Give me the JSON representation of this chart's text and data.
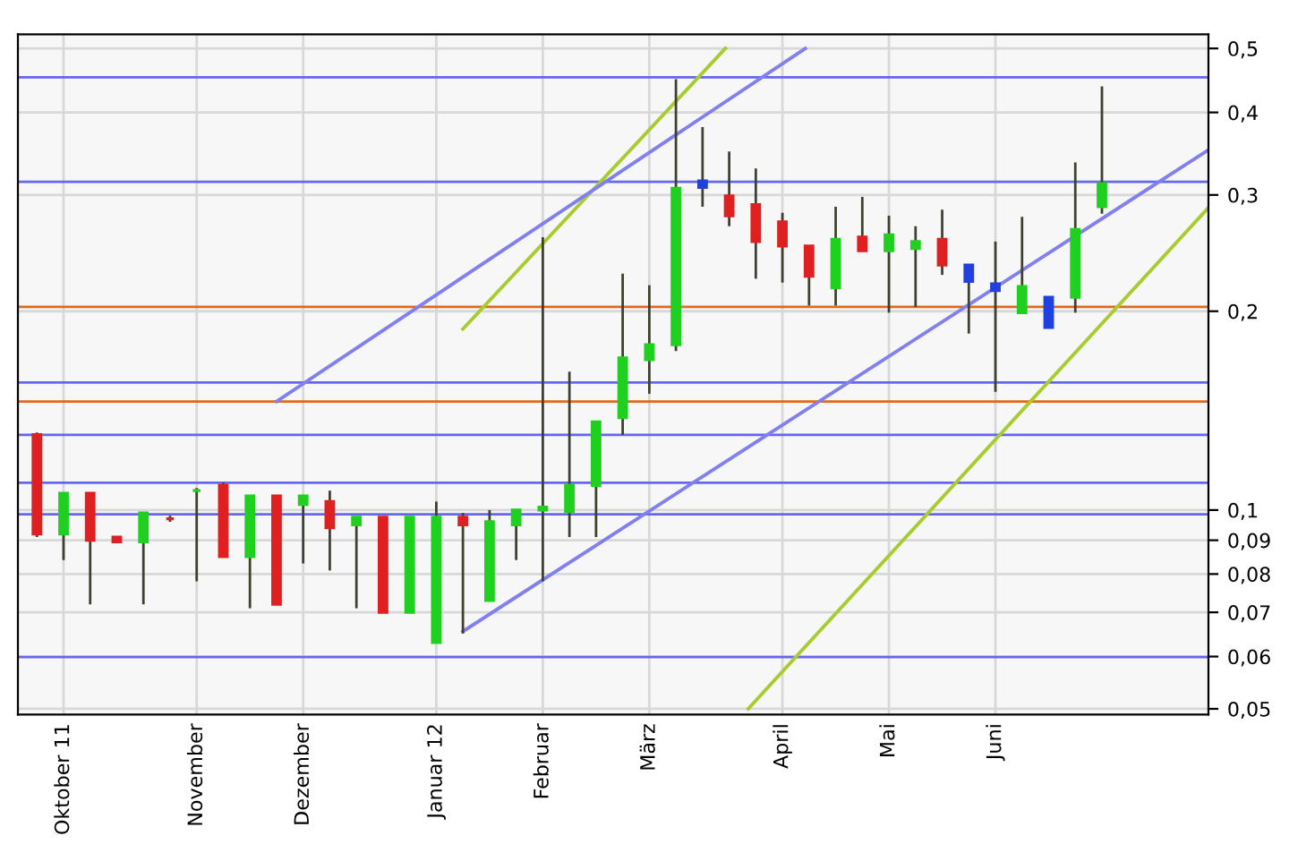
{
  "chart_data": {
    "type": "candlestick",
    "x": [
      "2011-09-26",
      "2011-10-03",
      "2011-10-10",
      "2011-10-17",
      "2011-10-24",
      "2011-10-31",
      "2011-11-07",
      "2011-11-14",
      "2011-11-21",
      "2011-11-28",
      "2011-12-05",
      "2011-12-12",
      "2011-12-19",
      "2011-12-26",
      "2012-01-02",
      "2012-01-09",
      "2012-01-16",
      "2012-01-23",
      "2012-01-30",
      "2012-02-06",
      "2012-02-13",
      "2012-02-20",
      "2012-02-27",
      "2012-03-05",
      "2012-03-12",
      "2012-03-19",
      "2012-03-26",
      "2012-04-02",
      "2012-04-09",
      "2012-04-16",
      "2012-04-23",
      "2012-04-30",
      "2012-05-07",
      "2012-05-14",
      "2012-05-21",
      "2012-05-28",
      "2012-06-04",
      "2012-06-11",
      "2012-06-18",
      "2012-06-25",
      "2012-07-02"
    ],
    "ohlc": [
      [
        0.13,
        0.131,
        0.091,
        0.092
      ],
      [
        0.092,
        0.106,
        0.084,
        0.106
      ],
      [
        0.106,
        0.106,
        0.072,
        0.09
      ],
      [
        0.091,
        0.091,
        0.0895,
        0.0895
      ],
      [
        0.0895,
        0.099,
        0.072,
        0.099
      ],
      [
        0.097,
        0.098,
        0.096,
        0.097
      ],
      [
        0.107,
        0.108,
        0.078,
        0.107
      ],
      [
        0.109,
        0.11,
        0.085,
        0.085
      ],
      [
        0.085,
        0.105,
        0.071,
        0.105
      ],
      [
        0.105,
        0.105,
        0.072,
        0.072
      ],
      [
        0.102,
        0.105,
        0.083,
        0.105
      ],
      [
        0.103,
        0.107,
        0.081,
        0.094
      ],
      [
        0.095,
        0.0975,
        0.071,
        0.0975
      ],
      [
        0.0975,
        0.0975,
        0.07,
        0.07
      ],
      [
        0.07,
        0.0975,
        0.07,
        0.0975
      ],
      [
        0.063,
        0.103,
        0.063,
        0.0975
      ],
      [
        0.0975,
        0.099,
        0.065,
        0.095
      ],
      [
        0.073,
        0.1,
        0.073,
        0.096
      ],
      [
        0.095,
        0.1,
        0.084,
        0.1
      ],
      [
        0.1,
        0.259,
        0.078,
        0.101
      ],
      [
        0.0995,
        0.162,
        0.091,
        0.109
      ],
      [
        0.109,
        0.136,
        0.091,
        0.136
      ],
      [
        0.138,
        0.228,
        0.13,
        0.17
      ],
      [
        0.169,
        0.219,
        0.15,
        0.178
      ],
      [
        0.178,
        0.449,
        0.174,
        0.307
      ],
      [
        0.308,
        0.38,
        0.288,
        0.315
      ],
      [
        0.299,
        0.349,
        0.269,
        0.279
      ],
      [
        0.29,
        0.329,
        0.224,
        0.255
      ],
      [
        0.273,
        0.282,
        0.221,
        0.251
      ],
      [
        0.251,
        0.251,
        0.204,
        0.226
      ],
      [
        0.217,
        0.288,
        0.204,
        0.257
      ],
      [
        0.259,
        0.298,
        0.247,
        0.247
      ],
      [
        0.247,
        0.279,
        0.199,
        0.261
      ],
      [
        0.249,
        0.269,
        0.203,
        0.255
      ],
      [
        0.257,
        0.285,
        0.227,
        0.235
      ],
      [
        0.235,
        0.235,
        0.185,
        0.222
      ],
      [
        0.215,
        0.255,
        0.151,
        0.22
      ],
      [
        0.199,
        0.278,
        0.199,
        0.218
      ],
      [
        0.189,
        0.21,
        0.189,
        0.21
      ],
      [
        0.21,
        0.336,
        0.199,
        0.266
      ],
      [
        0.288,
        0.438,
        0.281,
        0.312
      ]
    ],
    "colors": [
      "#e02020",
      "#20d020",
      "#e02020",
      "#e02020",
      "#20d020",
      "#e02020",
      "#20d020",
      "#e02020",
      "#20d020",
      "#e02020",
      "#20d020",
      "#e02020",
      "#20d020",
      "#e02020",
      "#20d020",
      "#20d020",
      "#e02020",
      "#20d020",
      "#20d020",
      "#20d020",
      "#20d020",
      "#20d020",
      "#20d020",
      "#20d020",
      "#20d020",
      "#2040e0",
      "#e02020",
      "#e02020",
      "#e02020",
      "#e02020",
      "#20d020",
      "#e02020",
      "#20d020",
      "#20d020",
      "#e02020",
      "#2040e0",
      "#2040e0",
      "#20d020",
      "#2040e0",
      "#20d020",
      "#20d020"
    ],
    "series": [
      {
        "type": "line",
        "color": "#a8cc30",
        "x": [
          "2012-01-16",
          "2012-03-25"
        ],
        "values": [
          0.188,
          0.5
        ]
      },
      {
        "type": "line",
        "color": "#a8cc30",
        "x": [
          "2012-03-31",
          "2012-07-30"
        ],
        "values": [
          0.05,
          0.287
        ]
      },
      {
        "type": "line",
        "color": "#8080f0",
        "x": [
          "2011-11-28",
          "2012-04-15"
        ],
        "values": [
          0.146,
          0.5
        ]
      },
      {
        "type": "line",
        "color": "#8080f0",
        "x": [
          "2012-01-16",
          "2012-07-30"
        ],
        "values": [
          0.0655,
          0.351
        ]
      }
    ],
    "ref_lines": [
      {
        "axis": "y",
        "value": 0.452,
        "color": "#6666ee"
      },
      {
        "axis": "y",
        "value": 0.314,
        "color": "#6666ee"
      },
      {
        "axis": "y",
        "value": 0.203,
        "color": "#e06a1a"
      },
      {
        "axis": "y",
        "value": 0.156,
        "color": "#6666ee"
      },
      {
        "axis": "y",
        "value": 0.146,
        "color": "#e06a1a"
      },
      {
        "axis": "y",
        "value": 0.13,
        "color": "#6666ee"
      },
      {
        "axis": "y",
        "value": 0.11,
        "color": "#6666ee"
      },
      {
        "axis": "y",
        "value": 0.0985,
        "color": "#6666ee"
      },
      {
        "axis": "y",
        "value": 0.0599,
        "color": "#6666ee"
      }
    ],
    "log": "y",
    "grid": true,
    "xlim": [
      "2011-09-21",
      "2012-07-30"
    ],
    "xticks": [
      {
        "value": "2011-10-03",
        "label": "Oktober 11"
      },
      {
        "value": "2011-11-07",
        "label": "November"
      },
      {
        "value": "2011-12-05",
        "label": "Dezember"
      },
      {
        "value": "2012-01-09",
        "label": "Januar 12"
      },
      {
        "value": "2012-02-06",
        "label": "Februar"
      },
      {
        "value": "2012-03-05",
        "label": "März"
      },
      {
        "value": "2012-04-09",
        "label": "April"
      },
      {
        "value": "2012-05-07",
        "label": "Mai"
      },
      {
        "value": "2012-06-04",
        "label": "Juni"
      }
    ],
    "ylim": [
      0.049,
      0.525
    ],
    "yticks": [
      {
        "value": 0.05,
        "label": "0,05"
      },
      {
        "value": 0.06,
        "label": "0,06"
      },
      {
        "value": 0.07,
        "label": "0,07"
      },
      {
        "value": 0.08,
        "label": "0,08"
      },
      {
        "value": 0.09,
        "label": "0,09"
      },
      {
        "value": 0.1,
        "label": "0,1"
      },
      {
        "value": 0.2,
        "label": "0,2"
      },
      {
        "value": 0.3,
        "label": "0,3"
      },
      {
        "value": 0.4,
        "label": "0,4"
      },
      {
        "value": 0.5,
        "label": "0,5"
      }
    ]
  }
}
